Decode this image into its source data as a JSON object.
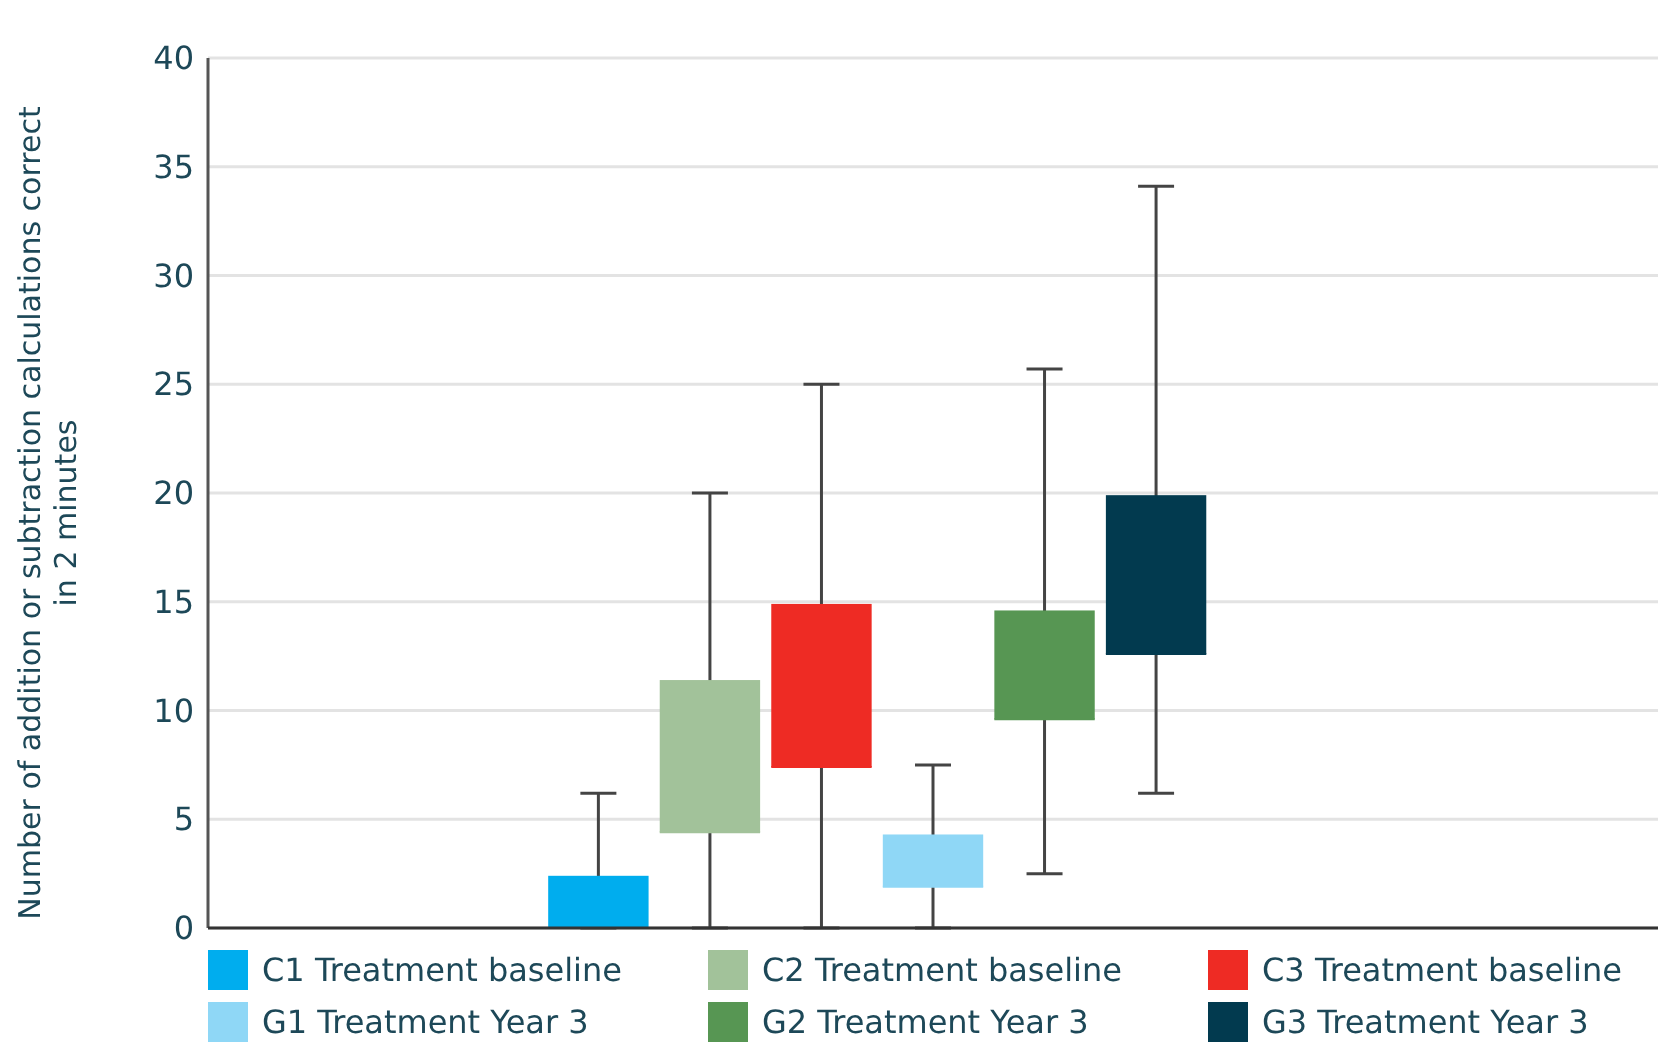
{
  "chart_data": {
    "type": "box",
    "ylabel": "Number of addition or subtraction calculations correct in 2 minutes",
    "categories": [
      null,
      null,
      null,
      null,
      null,
      null,
      null,
      null,
      null,
      null,
      null,
      null,
      null
    ],
    "ylim": [
      0,
      40
    ],
    "yticks": [
      0,
      5,
      10,
      15,
      20,
      25,
      30,
      35,
      40
    ],
    "grid": "y",
    "legend": "bottom",
    "series": [
      {
        "name": "C1 Treatment baseline",
        "color": "#00adee",
        "boxes": [
          null,
          null,
          null,
          {
            "low": 0,
            "q1": 0,
            "median": 0,
            "q3": 2.4,
            "high": 6.2
          },
          null,
          null,
          null,
          null,
          null,
          null,
          null,
          null,
          null
        ]
      },
      {
        "name": "C2 Treatment baseline",
        "color": "#a2c29a",
        "boxes": [
          null,
          null,
          null,
          null,
          {
            "low": 0,
            "q1": 4.4,
            "median": 4.4,
            "q3": 11.4,
            "high": 20
          },
          null,
          null,
          null,
          null,
          null,
          null,
          null,
          null
        ]
      },
      {
        "name": "C3 Treatment baseline",
        "color": "#ee2b24",
        "boxes": [
          null,
          null,
          null,
          null,
          null,
          {
            "low": 0,
            "q1": 7.4,
            "median": 7.4,
            "q3": 14.9,
            "high": 25
          },
          null,
          null,
          null,
          null,
          null,
          null,
          null
        ]
      },
      {
        "name": "G1 Treatment Year 3",
        "color": "#8fd7f6",
        "boxes": [
          null,
          null,
          null,
          null,
          null,
          null,
          {
            "low": 0,
            "q1": 1.9,
            "median": 1.9,
            "q3": 4.3,
            "high": 7.5
          },
          null,
          null,
          null,
          null,
          null,
          null
        ]
      },
      {
        "name": "G2 Treatment Year 3",
        "color": "#579653",
        "boxes": [
          null,
          null,
          null,
          null,
          null,
          null,
          null,
          {
            "low": 2.5,
            "q1": 9.6,
            "median": 9.6,
            "q3": 14.6,
            "high": 25.7
          },
          null,
          null,
          null,
          null,
          null
        ]
      },
      {
        "name": "G3 Treatment Year 3",
        "color": "#023a4f",
        "boxes": [
          null,
          null,
          null,
          null,
          null,
          null,
          null,
          null,
          {
            "low": 6.2,
            "q1": 12.6,
            "median": 12.6,
            "q3": 19.9,
            "high": 34.1
          },
          null,
          null,
          null,
          null
        ]
      }
    ]
  }
}
